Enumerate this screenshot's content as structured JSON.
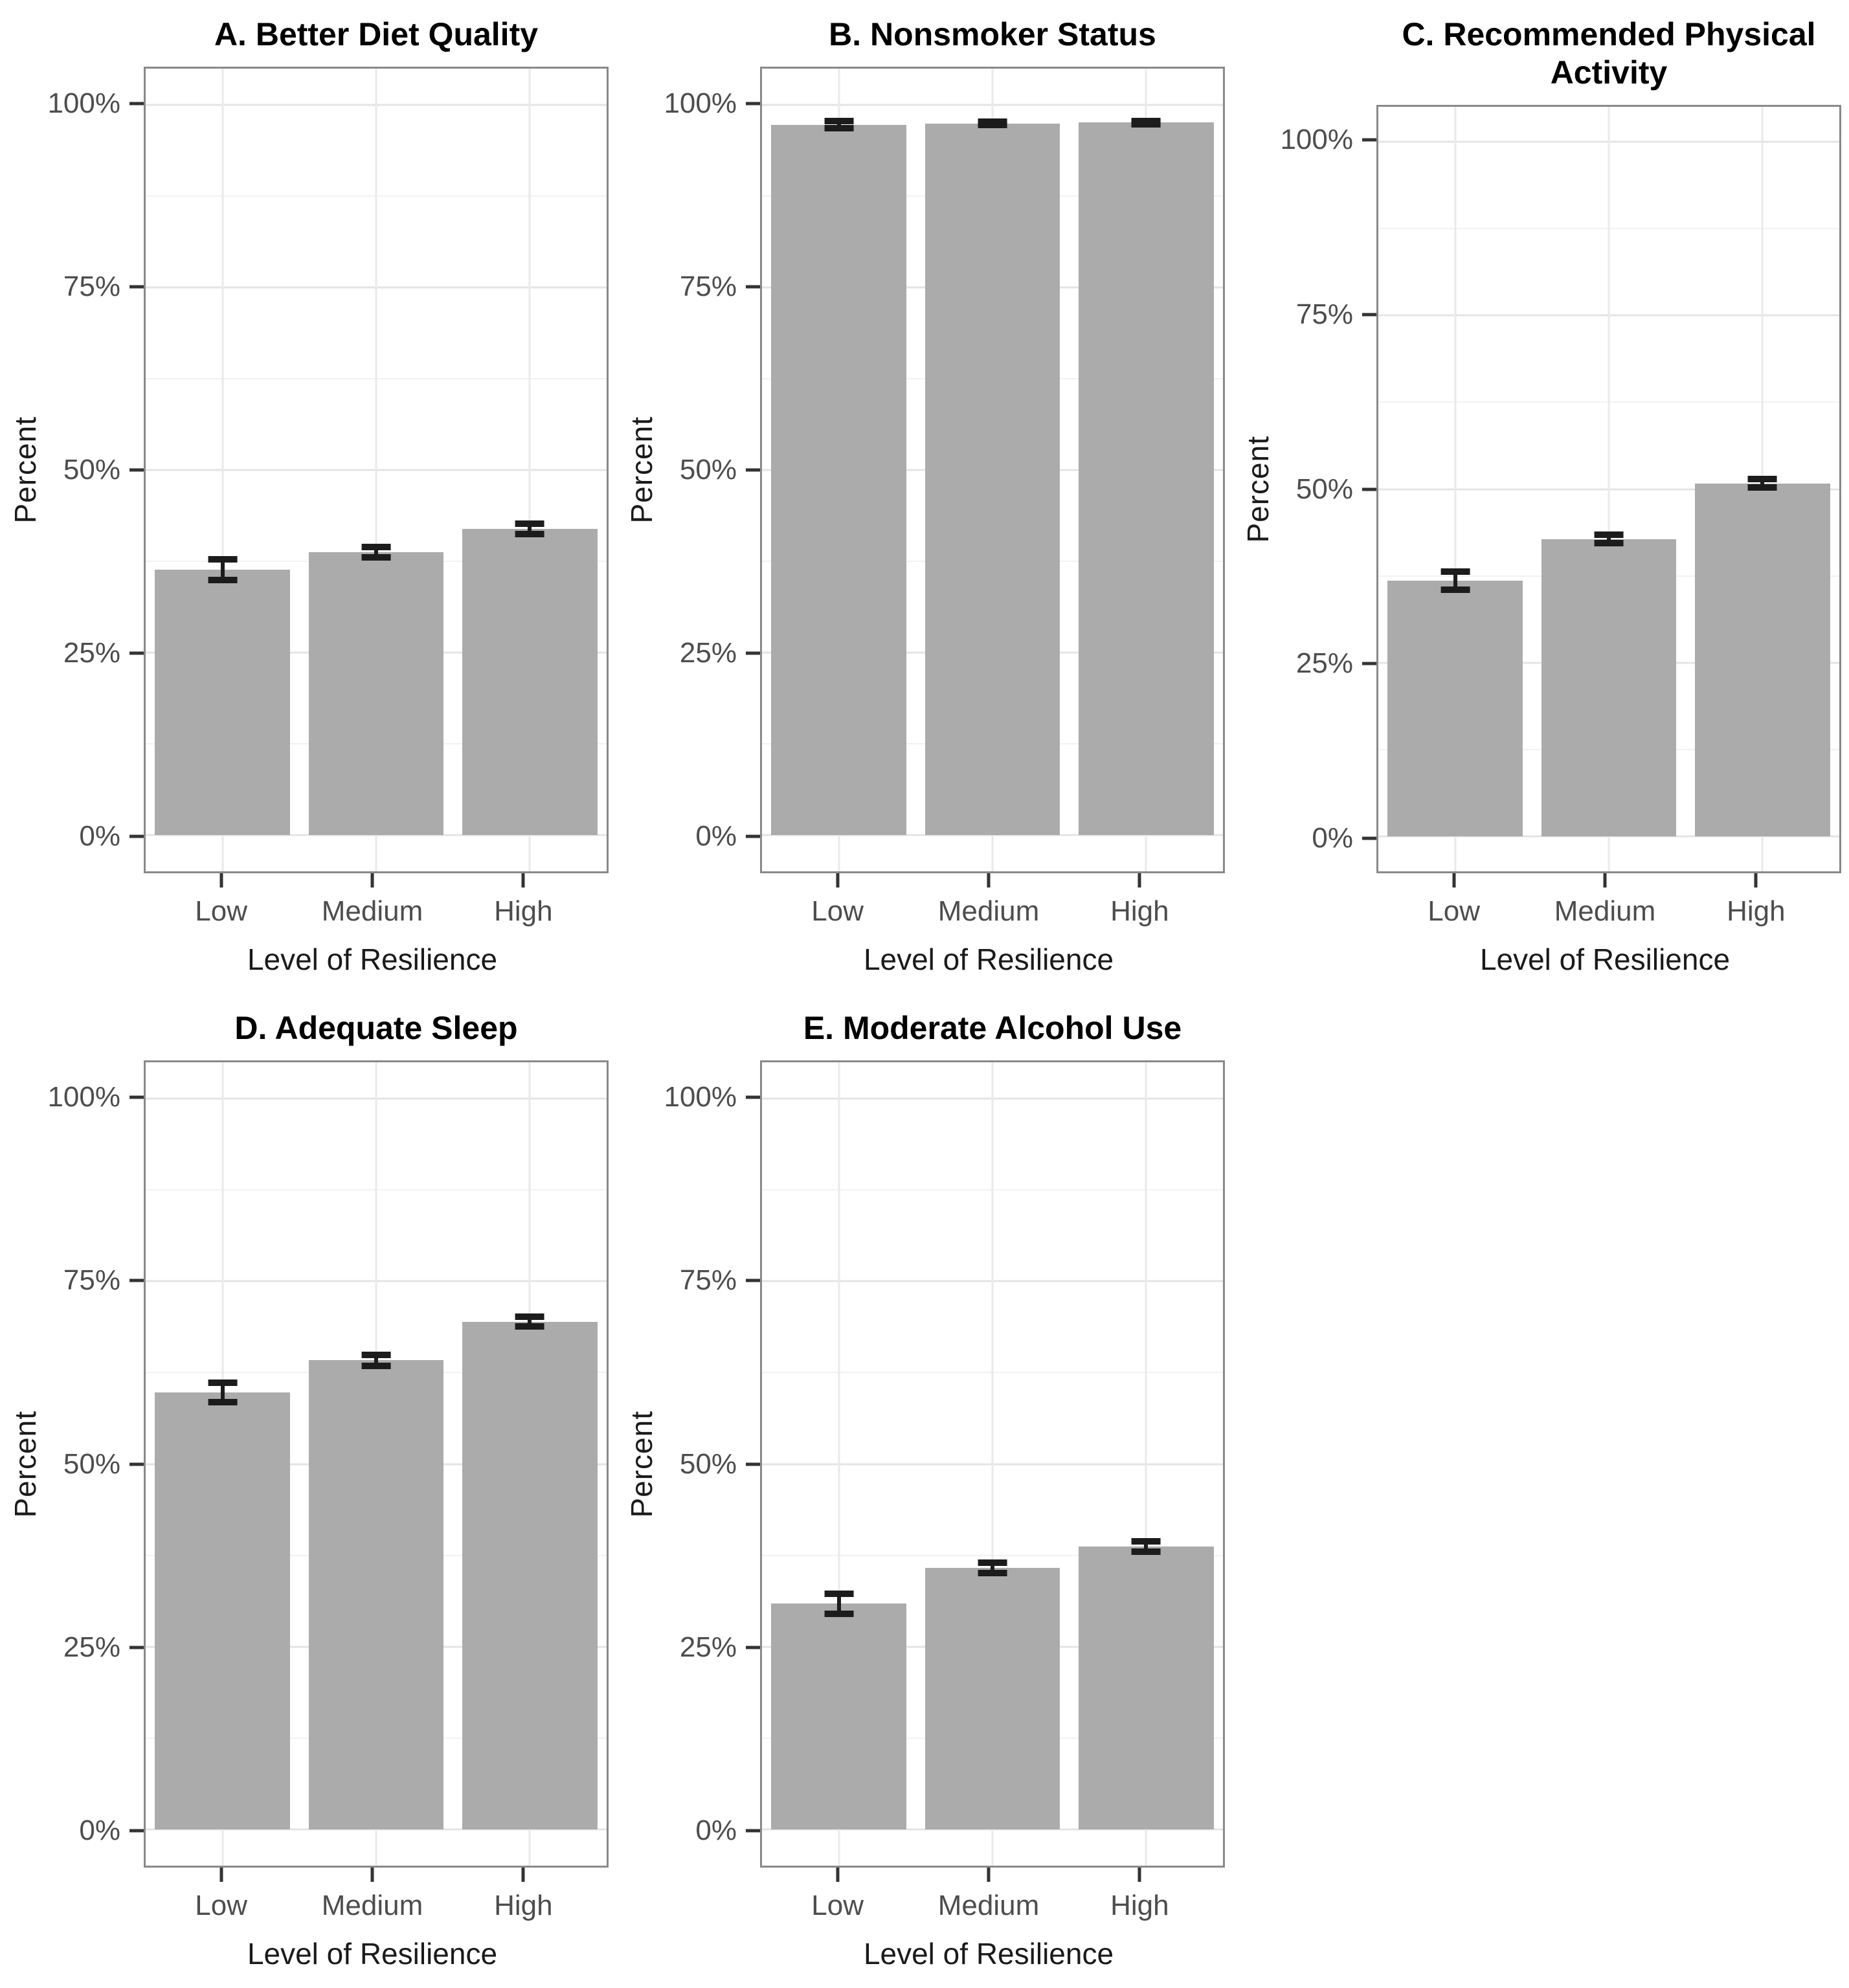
{
  "figure": {
    "background": "#ffffff",
    "panel_layout": "3 columns x 2 rows, bottom-right cell empty",
    "colors": {
      "bar_fill": "#ababab",
      "error_bar": "#1c1c1c",
      "panel_border": "#898989",
      "gridline_major": "#e4e4e4",
      "gridline_minor": "#f2f2f2",
      "tick_mark": "#333333",
      "tick_label_text": "#4d4d4d",
      "axis_title_text": "#1a1a1a",
      "title_text": "#000000"
    }
  },
  "chart_data": [
    {
      "panel": "A",
      "type": "bar",
      "title": "A. Better Diet Quality",
      "categories": [
        "Low",
        "Medium",
        "High"
      ],
      "values": [
        36.3,
        38.7,
        41.9
      ],
      "ci_low": [
        34.9,
        38.0,
        41.2
      ],
      "ci_high": [
        37.8,
        39.4,
        42.6
      ],
      "xlabel": "Level of Resilience",
      "ylabel": "Percent",
      "ylim": [
        0,
        100
      ],
      "ytick_values": [
        0,
        25,
        50,
        75,
        100
      ],
      "ytick_labels": [
        "0%",
        "25%",
        "50%",
        "75%",
        "100%"
      ],
      "grid": true,
      "legend": "none"
    },
    {
      "panel": "B",
      "type": "bar",
      "title": "B. Nonsmoker Status",
      "categories": [
        "Low",
        "Medium",
        "High"
      ],
      "values": [
        97.3,
        97.5,
        97.6
      ],
      "ci_low": [
        96.8,
        97.3,
        97.4
      ],
      "ci_high": [
        97.8,
        97.7,
        97.8
      ],
      "xlabel": "Level of Resilience",
      "ylabel": "Percent",
      "ylim": [
        0,
        100
      ],
      "ytick_values": [
        0,
        25,
        50,
        75,
        100
      ],
      "ytick_labels": [
        "0%",
        "25%",
        "50%",
        "75%",
        "100%"
      ],
      "grid": true,
      "legend": "none"
    },
    {
      "panel": "C",
      "type": "bar",
      "title": "C. Recommended Physical Activity",
      "categories": [
        "Low",
        "Medium",
        "High"
      ],
      "values": [
        36.8,
        42.8,
        50.8
      ],
      "ci_low": [
        35.5,
        42.2,
        50.2
      ],
      "ci_high": [
        38.1,
        43.4,
        51.4
      ],
      "xlabel": "Level of Resilience",
      "ylabel": "Percent",
      "ylim": [
        0,
        100
      ],
      "ytick_values": [
        0,
        25,
        50,
        75,
        100
      ],
      "ytick_labels": [
        "0%",
        "25%",
        "50%",
        "75%",
        "100%"
      ],
      "grid": true,
      "legend": "none"
    },
    {
      "panel": "D",
      "type": "bar",
      "title": "D. Adequate Sleep",
      "categories": [
        "Low",
        "Medium",
        "High"
      ],
      "values": [
        59.8,
        64.2,
        69.5
      ],
      "ci_low": [
        58.5,
        63.4,
        68.8
      ],
      "ci_high": [
        61.1,
        64.9,
        70.2
      ],
      "xlabel": "Level of Resilience",
      "ylabel": "Percent",
      "ylim": [
        0,
        100
      ],
      "ytick_values": [
        0,
        25,
        50,
        75,
        100
      ],
      "ytick_labels": [
        "0%",
        "25%",
        "50%",
        "75%",
        "100%"
      ],
      "grid": true,
      "legend": "none"
    },
    {
      "panel": "E",
      "type": "bar",
      "title": "E. Moderate Alcohol Use",
      "categories": [
        "Low",
        "Medium",
        "High"
      ],
      "values": [
        30.9,
        35.8,
        38.7
      ],
      "ci_low": [
        29.5,
        35.1,
        38.0
      ],
      "ci_high": [
        32.2,
        36.5,
        39.4
      ],
      "xlabel": "Level of Resilience",
      "ylabel": "Percent",
      "ylim": [
        0,
        100
      ],
      "ytick_values": [
        0,
        25,
        50,
        75,
        100
      ],
      "ytick_labels": [
        "0%",
        "25%",
        "50%",
        "75%",
        "100%"
      ],
      "grid": true,
      "legend": "none"
    }
  ]
}
